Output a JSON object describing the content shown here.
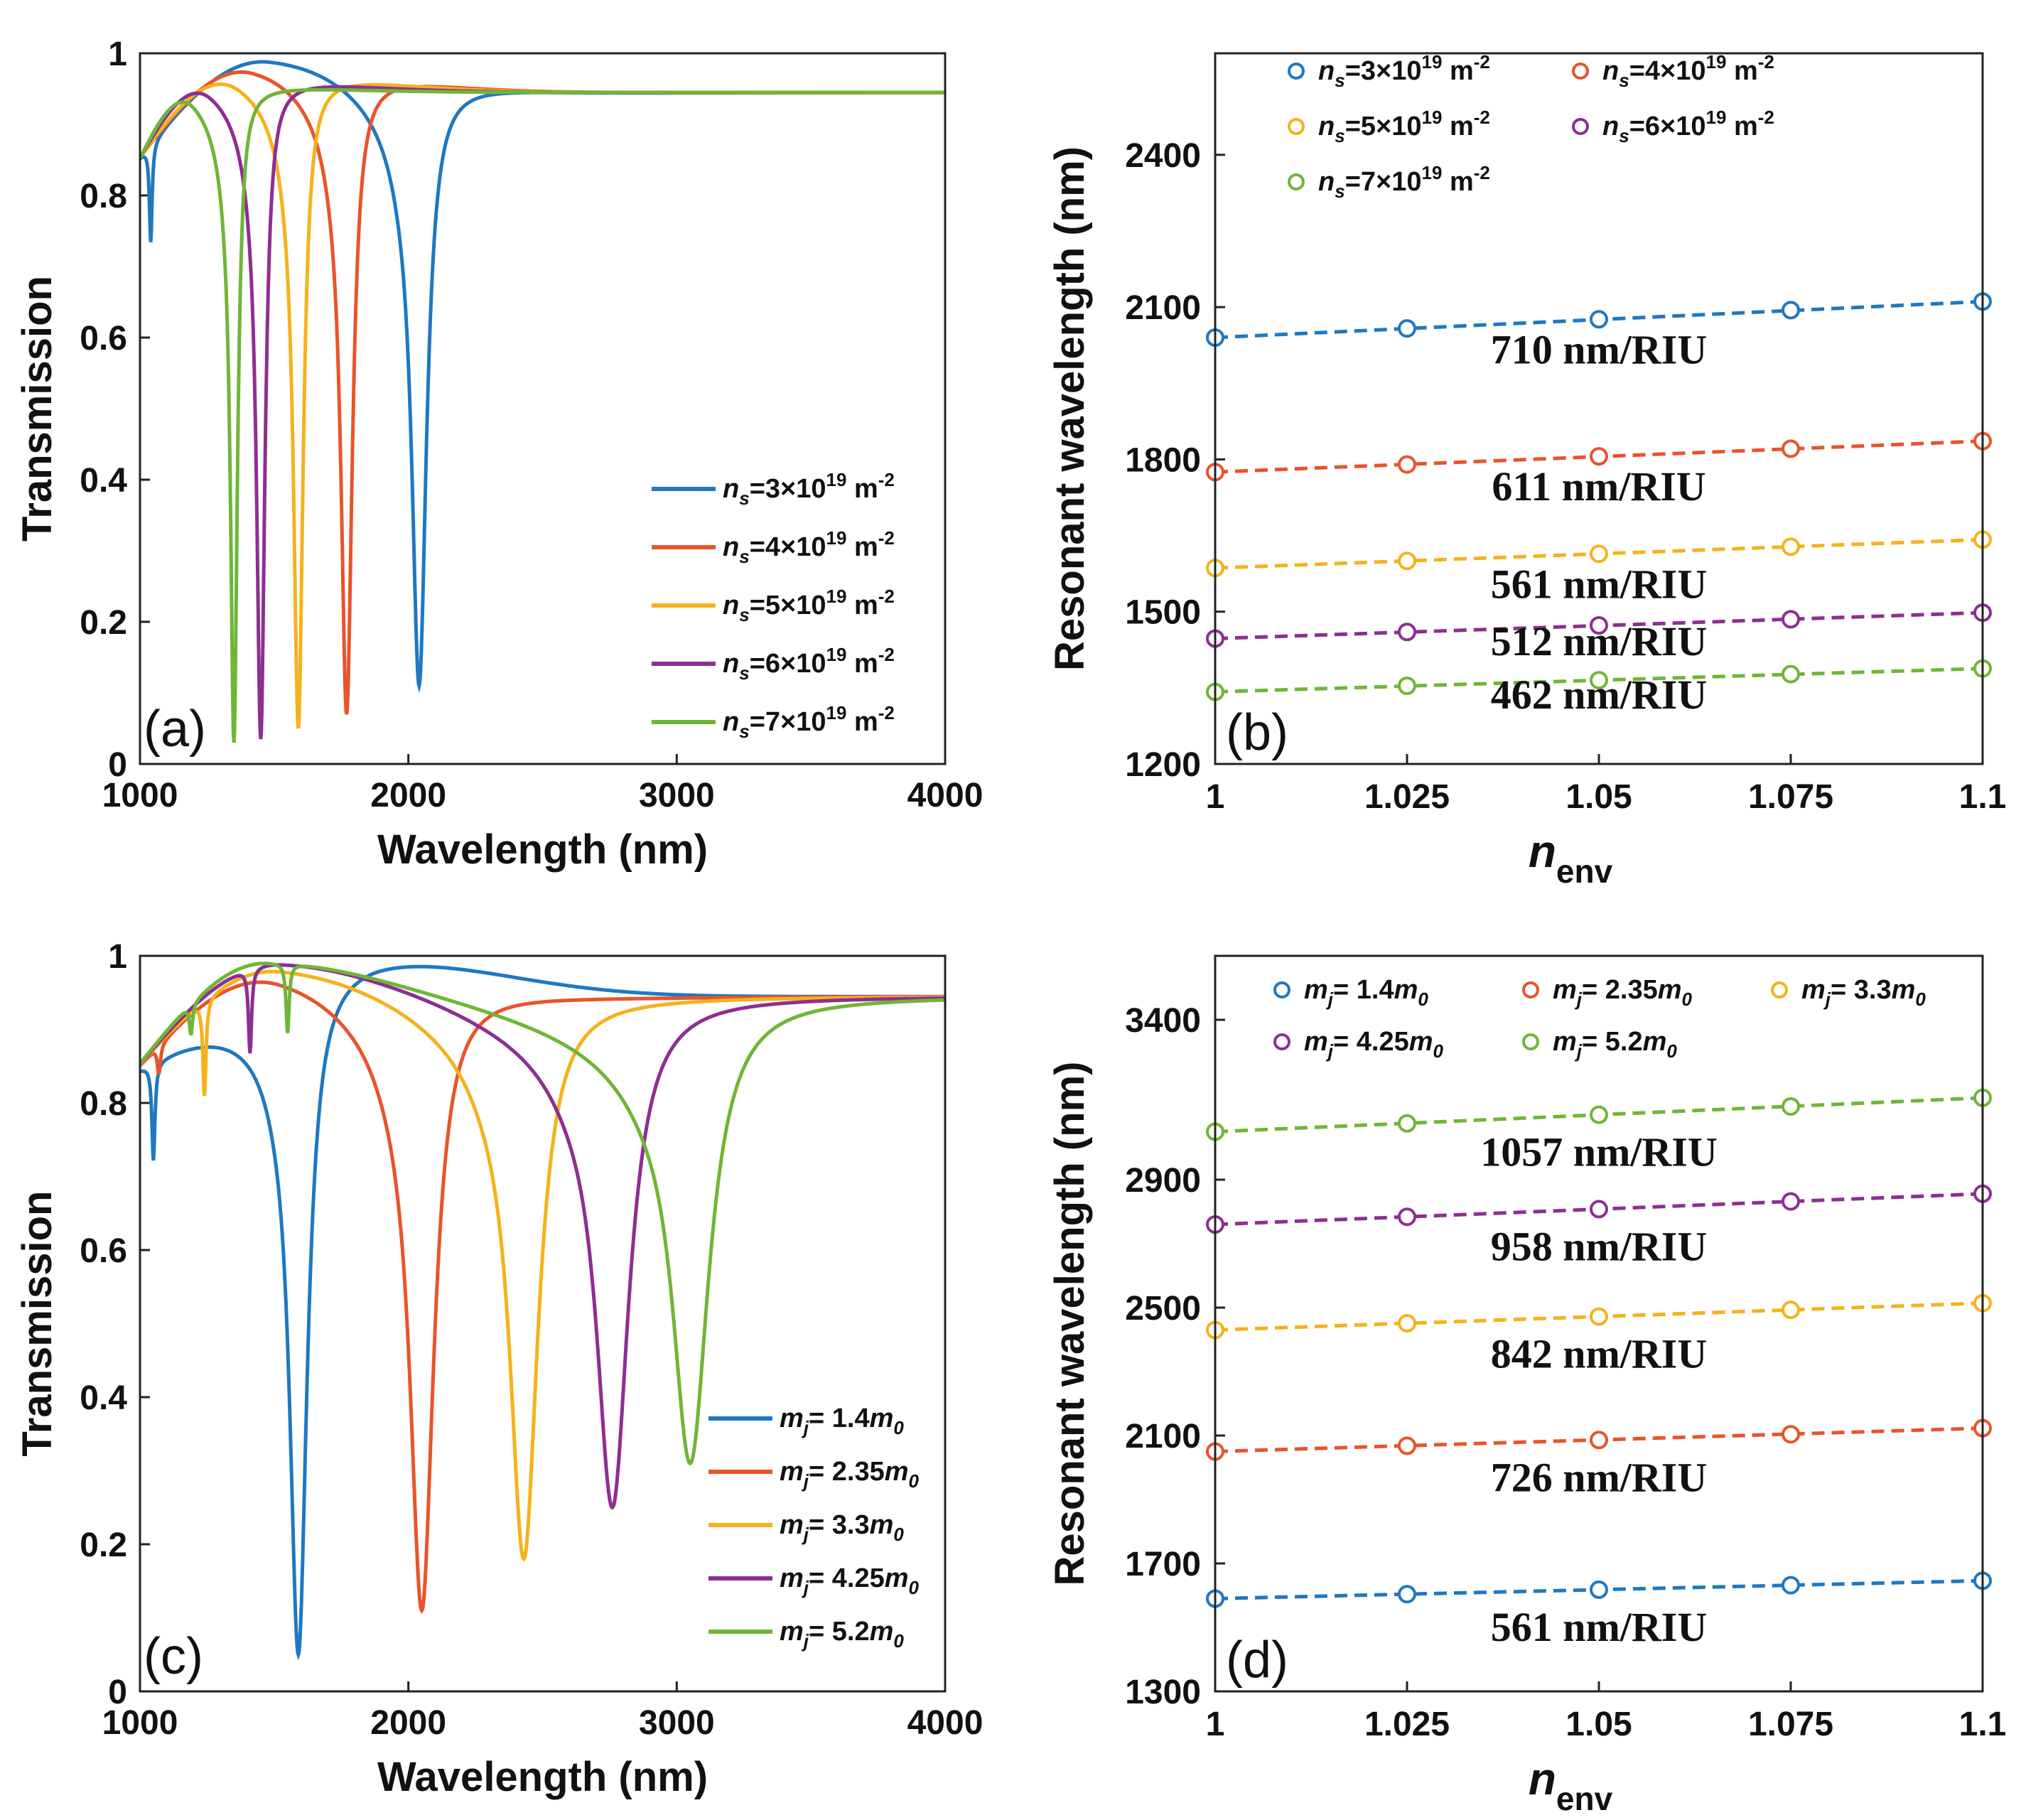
{
  "colors": {
    "blue": "#1f78c1",
    "orange": "#e8542a",
    "yellow": "#f5b21c",
    "purple": "#8e2e93",
    "green": "#6fb637"
  },
  "chart_data": [
    {
      "id": "a",
      "type": "line",
      "panel_label": "(a)",
      "xlabel": "Wavelength (nm)",
      "ylabel": "Transmission",
      "xlim": [
        1000,
        4000
      ],
      "ylim": [
        0,
        1
      ],
      "xticks": [
        "1000",
        "2000",
        "3000",
        "4000"
      ],
      "yticks": [
        "0",
        "0.2",
        "0.4",
        "0.6",
        "0.8",
        "1"
      ],
      "legend_position": "bottom-right",
      "series": [
        {
          "name": "ns=3×10^19 m^-2",
          "legend": {
            "sym": "n",
            "sub": "s",
            "mid": "=3×10",
            "sup": "19",
            "unit": " m",
            "unitsup": "-2"
          },
          "color": "blue",
          "resonance": 2040,
          "min": 0.11,
          "width": 34,
          "peak_x": 1480,
          "peak_y": 0.995,
          "secondary": [
            {
              "x": 1040,
              "min": 0.72,
              "w": 6
            }
          ]
        },
        {
          "name": "ns=4×10^19 m^-2",
          "legend": {
            "sym": "n",
            "sub": "s",
            "mid": "=4×10",
            "sup": "19",
            "unit": " m",
            "unitsup": "-2"
          },
          "color": "orange",
          "resonance": 1770,
          "min": 0.07,
          "width": 26,
          "peak_x": 1420,
          "peak_y": 0.985,
          "secondary": []
        },
        {
          "name": "ns=5×10^19 m^-2",
          "legend": {
            "sym": "n",
            "sub": "s",
            "mid": "=5×10",
            "sup": "19",
            "unit": " m",
            "unitsup": "-2"
          },
          "color": "yellow",
          "resonance": 1590,
          "min": 0.05,
          "width": 22,
          "peak_x": 1360,
          "peak_y": 0.975,
          "secondary": []
        },
        {
          "name": "ns=6×10^19 m^-2",
          "legend": {
            "sym": "n",
            "sub": "s",
            "mid": "=6×10",
            "sup": "19",
            "unit": " m",
            "unitsup": "-2"
          },
          "color": "purple",
          "resonance": 1450,
          "min": 0.035,
          "width": 19,
          "peak_x": 1260,
          "peak_y": 0.965,
          "secondary": []
        },
        {
          "name": "ns=7×10^19 m^-2",
          "legend": {
            "sym": "n",
            "sub": "s",
            "mid": "=7×10",
            "sup": "19",
            "unit": " m",
            "unitsup": "-2"
          },
          "color": "green",
          "resonance": 1350,
          "min": 0.03,
          "width": 16,
          "peak_x": 1200,
          "peak_y": 0.955,
          "secondary": []
        }
      ]
    },
    {
      "id": "b",
      "type": "scatter",
      "panel_label": "(b)",
      "xlabel_main": "n",
      "xlabel_sub": "env",
      "ylabel": "Resonant wavelength (nm)",
      "xlim": [
        1,
        1.1
      ],
      "ylim": [
        1200,
        2600
      ],
      "xticks": [
        1,
        1.025,
        1.05,
        1.075,
        1.1
      ],
      "xticklabels": [
        "1",
        "1.025",
        "1.05",
        "1.075",
        "1.1"
      ],
      "yticks": [
        1200,
        1500,
        1800,
        2100,
        2400
      ],
      "yticklabels": [
        "1200",
        "1500",
        "1800",
        "2100",
        "2400"
      ],
      "x": [
        1,
        1.025,
        1.05,
        1.075,
        1.1
      ],
      "legend_position": "top-left",
      "series": [
        {
          "name": "ns=3×10^19 m^-2",
          "legend": {
            "sym": "n",
            "sub": "s",
            "mid": "=3×10",
            "sup": "19",
            "unit": " m",
            "unitsup": "-2"
          },
          "color": "blue",
          "values": [
            2040,
            2058,
            2076,
            2094,
            2111
          ],
          "sensitivity": "710 nm/RIU"
        },
        {
          "name": "ns=4×10^19 m^-2",
          "legend": {
            "sym": "n",
            "sub": "s",
            "mid": "=4×10",
            "sup": "19",
            "unit": " m",
            "unitsup": "-2"
          },
          "color": "orange",
          "values": [
            1775,
            1790,
            1806,
            1821,
            1836
          ],
          "sensitivity": "611 nm/RIU"
        },
        {
          "name": "ns=5×10^19 m^-2",
          "legend": {
            "sym": "n",
            "sub": "s",
            "mid": "=5×10",
            "sup": "19",
            "unit": " m",
            "unitsup": "-2"
          },
          "color": "yellow",
          "values": [
            1586,
            1600,
            1614,
            1628,
            1642
          ],
          "sensitivity": "561 nm/RIU"
        },
        {
          "name": "ns=6×10^19 m^-2",
          "legend": {
            "sym": "n",
            "sub": "s",
            "mid": "=6×10",
            "sup": "19",
            "unit": " m",
            "unitsup": "-2"
          },
          "color": "purple",
          "values": [
            1447,
            1460,
            1473,
            1485,
            1498
          ],
          "sensitivity": "512 nm/RIU"
        },
        {
          "name": "ns=7×10^19 m^-2",
          "legend": {
            "sym": "n",
            "sub": "s",
            "mid": "=7×10",
            "sup": "19",
            "unit": " m",
            "unitsup": "-2"
          },
          "color": "green",
          "values": [
            1342,
            1354,
            1365,
            1377,
            1388
          ],
          "sensitivity": "462 nm/RIU"
        }
      ]
    },
    {
      "id": "c",
      "type": "line",
      "panel_label": "(c)",
      "xlabel": "Wavelength (nm)",
      "ylabel": "Transmission",
      "xlim": [
        1000,
        4000
      ],
      "ylim": [
        0,
        1
      ],
      "xticks": [
        "1000",
        "2000",
        "3000",
        "4000"
      ],
      "yticks": [
        "0",
        "0.2",
        "0.4",
        "0.6",
        "0.8",
        "1"
      ],
      "legend_position": "bottom-right",
      "series": [
        {
          "name": "mj= 1.4m0",
          "legend": {
            "sym": "m",
            "sub": "j",
            "mid": "= 1.4",
            "sym2": "m",
            "sub2": "0"
          },
          "color": "blue",
          "resonance": 1590,
          "min": 0.05,
          "width": 40,
          "peak_x": 1900,
          "peak_y": 0.995,
          "secondary": [
            {
              "x": 1050,
              "min": 0.72,
              "w": 7
            }
          ]
        },
        {
          "name": "mj= 2.35m0",
          "legend": {
            "sym": "m",
            "sub": "j",
            "mid": "= 2.35",
            "sym2": "m",
            "sub2": "0"
          },
          "color": "orange",
          "resonance": 2050,
          "min": 0.11,
          "width": 55,
          "peak_x": 1520,
          "peak_y": 0.99,
          "secondary": [
            {
              "x": 1070,
              "min": 0.84,
              "w": 7
            }
          ]
        },
        {
          "name": "mj= 3.3m0",
          "legend": {
            "sym": "m",
            "sub": "j",
            "mid": "= 3.3",
            "sym2": "m",
            "sub2": "0"
          },
          "color": "yellow",
          "resonance": 2430,
          "min": 0.18,
          "width": 65,
          "peak_x": 1520,
          "peak_y": 0.99,
          "secondary": [
            {
              "x": 1240,
              "min": 0.8,
              "w": 7
            }
          ]
        },
        {
          "name": "mj= 4.25m0",
          "legend": {
            "sym": "m",
            "sub": "j",
            "mid": "= 4.25",
            "sym2": "m",
            "sub2": "0"
          },
          "color": "purple",
          "resonance": 2760,
          "min": 0.25,
          "width": 75,
          "peak_x": 1520,
          "peak_y": 0.995,
          "secondary": [
            {
              "x": 1410,
              "min": 0.86,
              "w": 7
            }
          ]
        },
        {
          "name": "mj= 5.2m0",
          "legend": {
            "sym": "m",
            "sub": "j",
            "mid": "= 5.2",
            "sym2": "m",
            "sub2": "0"
          },
          "color": "green",
          "resonance": 3050,
          "min": 0.31,
          "width": 85,
          "peak_x": 1480,
          "peak_y": 0.995,
          "secondary": [
            {
              "x": 1190,
              "min": 0.89,
              "w": 7
            },
            {
              "x": 1550,
              "min": 0.89,
              "w": 7
            }
          ]
        }
      ]
    },
    {
      "id": "d",
      "type": "scatter",
      "panel_label": "(d)",
      "xlabel_main": "n",
      "xlabel_sub": "env",
      "ylabel": "Resonant wavelength (nm)",
      "xlim": [
        1,
        1.1
      ],
      "ylim": [
        1300,
        3600
      ],
      "xticks": [
        1,
        1.025,
        1.05,
        1.075,
        1.1
      ],
      "xticklabels": [
        "1",
        "1.025",
        "1.05",
        "1.075",
        "1.1"
      ],
      "yticks": [
        1300,
        1700,
        2100,
        2500,
        2900,
        3400
      ],
      "yticklabels": [
        "1300",
        "1700",
        "2100",
        "2500",
        "2900",
        "3400"
      ],
      "x": [
        1,
        1.025,
        1.05,
        1.075,
        1.1
      ],
      "legend_position": "top-left",
      "series": [
        {
          "name": "mj= 1.4m0",
          "legend": {
            "sym": "m",
            "sub": "j",
            "mid": "= 1.4",
            "sym2": "m",
            "sub2": "0"
          },
          "color": "blue",
          "values": [
            1590,
            1604,
            1618,
            1632,
            1646
          ],
          "sensitivity": "561 nm/RIU"
        },
        {
          "name": "mj= 2.35m0",
          "legend": {
            "sym": "m",
            "sub": "j",
            "mid": "= 2.35",
            "sym2": "m",
            "sub2": "0"
          },
          "color": "orange",
          "values": [
            2050,
            2068,
            2086,
            2104,
            2123
          ],
          "sensitivity": "726 nm/RIU"
        },
        {
          "name": "mj= 3.3m0",
          "legend": {
            "sym": "m",
            "sub": "j",
            "mid": "= 3.3",
            "sym2": "m",
            "sub2": "0"
          },
          "color": "yellow",
          "values": [
            2430,
            2451,
            2472,
            2493,
            2514
          ],
          "sensitivity": "842 nm/RIU"
        },
        {
          "name": "mj= 4.25m0",
          "legend": {
            "sym": "m",
            "sub": "j",
            "mid": "= 4.25",
            "sym2": "m",
            "sub2": "0"
          },
          "color": "purple",
          "values": [
            2760,
            2784,
            2808,
            2832,
            2856
          ],
          "sensitivity": "958 nm/RIU"
        },
        {
          "name": "mj= 5.2m0",
          "legend": {
            "sym": "m",
            "sub": "j",
            "mid": "= 5.2",
            "sym2": "m",
            "sub2": "0"
          },
          "color": "green",
          "values": [
            3050,
            3076,
            3103,
            3129,
            3156
          ],
          "sensitivity": "1057 nm/RIU"
        }
      ]
    }
  ]
}
